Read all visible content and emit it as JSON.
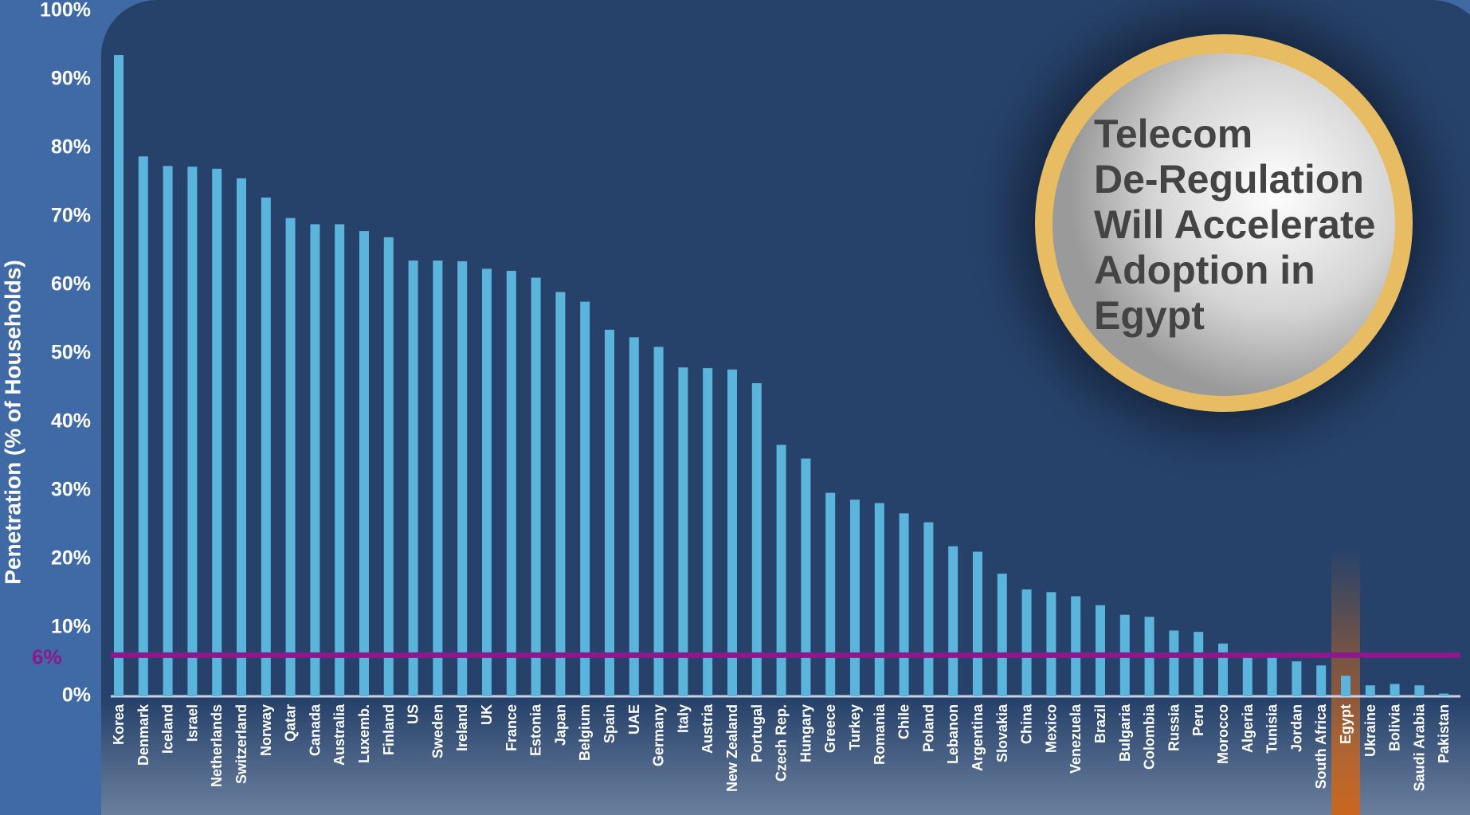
{
  "chart_data": {
    "type": "bar",
    "y_axis_label": "Penetration (% of Households)",
    "annotation": [
      "Telecom",
      "De-Regulation",
      "Will Accelerate",
      "Adoption in",
      "Egypt"
    ],
    "categories": [
      "Korea",
      "Denmark",
      "Iceland",
      "Israel",
      "Netherlands",
      "Switzerland",
      "Norway",
      "Qatar",
      "Canada",
      "Australia",
      "Luxemb.",
      "Finland",
      "US",
      "Sweden",
      "Ireland",
      "UK",
      "France",
      "Estonia",
      "Japan",
      "Belgium",
      "Spain",
      "UAE",
      "Germany",
      "Italy",
      "Austria",
      "New Zealand",
      "Portugal",
      "Czech Rep.",
      "Hungary",
      "Greece",
      "Turkey",
      "Romania",
      "Chile",
      "Poland",
      "Lebanon",
      "Argentina",
      "Slovakia",
      "China",
      "Mexico",
      "Venezuela",
      "Brazil",
      "Bulgaria",
      "Colombia",
      "Russia",
      "Peru",
      "Morocco",
      "Algeria",
      "Tunisia",
      "Jordan",
      "South Africa",
      "Egypt",
      "Ukraine",
      "Bolivia",
      "Saudi Arabia",
      "Pakistan"
    ],
    "values": [
      93.6,
      78.8,
      77.4,
      77.3,
      77,
      75.6,
      72.8,
      69.8,
      68.9,
      68.9,
      67.9,
      67,
      63.6,
      63.6,
      63.5,
      62.4,
      62.1,
      61.1,
      59,
      57.6,
      53.5,
      52.4,
      51,
      48,
      47.9,
      47.7,
      45.7,
      36.7,
      34.7,
      29.7,
      28.7,
      28.2,
      26.7,
      25.4,
      21.9,
      21.1,
      17.9,
      15.6,
      15.2,
      14.6,
      13.3,
      11.9,
      11.6,
      9.6,
      9.4,
      7.7,
      5.7,
      5.7,
      5.1,
      4.5,
      3,
      1.6,
      1.8,
      1.6,
      0.4
    ],
    "color": "#5ab4dc",
    "highlight": "Egypt",
    "highlight_color": "#c8661e",
    "reference_line": {
      "value": 6,
      "label": "6%",
      "color": "#8a1a8c"
    },
    "ylim": [
      0,
      100
    ],
    "yticks": [
      {
        "value": 0,
        "label": "0%"
      },
      {
        "value": 10,
        "label": "10%"
      },
      {
        "value": 20,
        "label": "20%"
      },
      {
        "value": 30,
        "label": "30%"
      },
      {
        "value": 40,
        "label": "40%"
      },
      {
        "value": 50,
        "label": "50%"
      },
      {
        "value": 60,
        "label": "60%"
      },
      {
        "value": 70,
        "label": "70%"
      },
      {
        "value": 80,
        "label": "80%"
      },
      {
        "value": 90,
        "label": "90%"
      },
      {
        "value": 100,
        "label": "100%"
      }
    ],
    "grid": false
  }
}
